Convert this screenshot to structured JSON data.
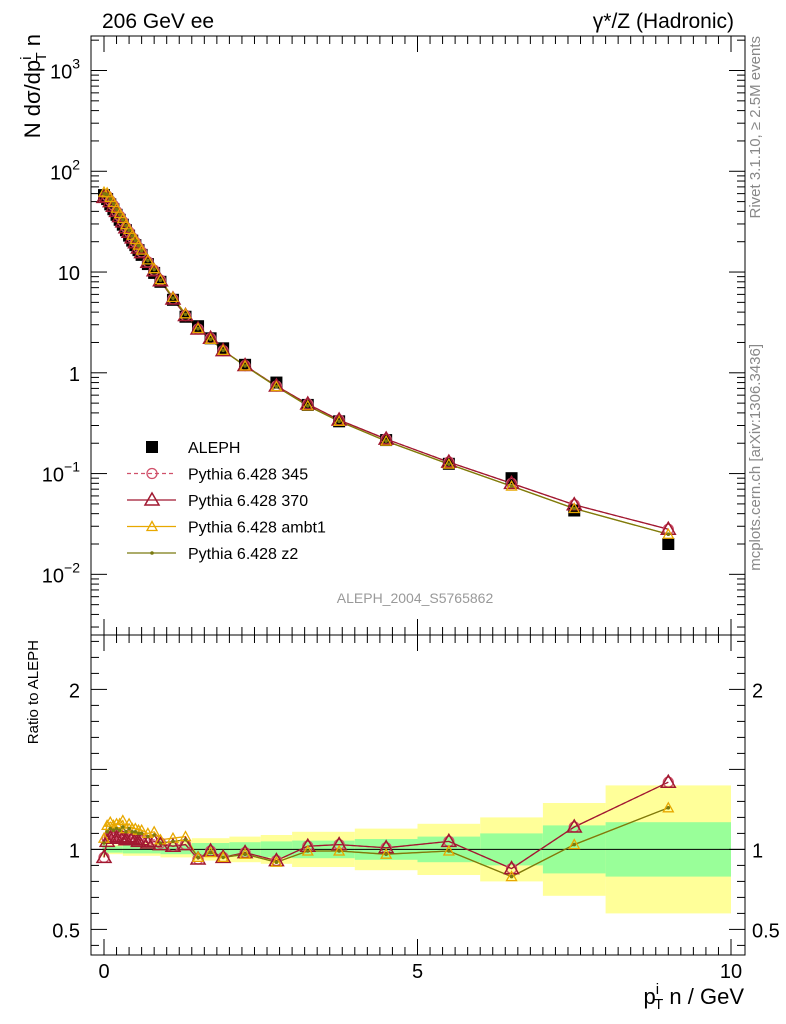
{
  "header": {
    "left": "206 GeV ee",
    "right": "γ*/Z (Hadronic)"
  },
  "side_labels": {
    "rivet": "Rivet 3.1.10, ≥ 2.5M events",
    "mcplots": "mcplots.cern.ch [arXiv:1306.3436]"
  },
  "analysis_id": "ALEPH_2004_S5765862",
  "colors": {
    "ALEPH": "#000000",
    "p345": "#d0506a",
    "p370": "#a01830",
    "ambt1": "#e8a800",
    "z2": "#7a7a10",
    "band_inner": "#99ff99",
    "band_outer": "#ffff99"
  },
  "chart_data": [
    {
      "type": "scatter",
      "panel": "main",
      "ylabel": "N dσ/dp^i_T n",
      "yscale": "log",
      "ylim": [
        0.0025,
        2200
      ],
      "xlim": [
        -0.25,
        10.1
      ],
      "y_ticks": [
        {
          "v": 0.01,
          "base": "10",
          "exp": "−2"
        },
        {
          "v": 0.1,
          "base": "10",
          "exp": "−1"
        },
        {
          "v": 1,
          "base": "1",
          "exp": ""
        },
        {
          "v": 10,
          "base": "10",
          "exp": ""
        },
        {
          "v": 100,
          "base": "10",
          "exp": "2"
        },
        {
          "v": 1000,
          "base": "10",
          "exp": "3"
        }
      ],
      "legend": [
        {
          "key": "ALEPH",
          "label": "ALEPH",
          "style": "square"
        },
        {
          "key": "p345",
          "label": "Pythia 6.428 345",
          "style": "circle-dashed"
        },
        {
          "key": "p370",
          "label": "Pythia 6.428 370",
          "style": "triangle"
        },
        {
          "key": "ambt1",
          "label": "Pythia 6.428 ambt1",
          "style": "triangle-small"
        },
        {
          "key": "z2",
          "label": "Pythia 6.428 z2",
          "style": "dot"
        }
      ],
      "x": [
        0.0,
        0.05,
        0.1,
        0.15,
        0.2,
        0.25,
        0.3,
        0.35,
        0.4,
        0.45,
        0.5,
        0.55,
        0.6,
        0.7,
        0.8,
        0.9,
        1.1,
        1.3,
        1.5,
        1.7,
        1.9,
        2.25,
        2.75,
        3.25,
        3.75,
        4.5,
        5.5,
        6.5,
        7.5,
        9.0
      ],
      "series": [
        {
          "key": "ALEPH",
          "name": "ALEPH",
          "values": [
            58,
            53,
            47,
            42,
            37,
            33,
            29.5,
            26,
            23,
            20.5,
            18.5,
            16.5,
            14.8,
            12,
            9.8,
            8.0,
            5.3,
            3.6,
            2.9,
            2.2,
            1.75,
            1.2,
            0.8,
            0.48,
            0.33,
            0.215,
            0.125,
            0.09,
            0.043,
            0.02
          ]
        },
        {
          "key": "p345",
          "name": "Pythia 6.428 345",
          "values": [
            55,
            57,
            51,
            46,
            40,
            36,
            31.7,
            27.8,
            25,
            22,
            19.8,
            17.5,
            15.8,
            12.6,
            10.4,
            8.3,
            5.4,
            3.7,
            2.72,
            2.2,
            1.66,
            1.18,
            0.74,
            0.49,
            0.34,
            0.22,
            0.13,
            0.08,
            0.049,
            0.028
          ]
        },
        {
          "key": "p370",
          "name": "Pythia 6.428 370",
          "values": [
            55,
            56,
            50,
            45,
            40,
            35.5,
            31.5,
            27.5,
            24.8,
            21.8,
            19.5,
            17.3,
            15.6,
            12.5,
            10.3,
            8.2,
            5.4,
            3.7,
            2.72,
            2.2,
            1.66,
            1.18,
            0.74,
            0.49,
            0.34,
            0.22,
            0.13,
            0.08,
            0.049,
            0.028
          ]
        },
        {
          "key": "ambt1",
          "name": "Pythia 6.428 ambt1",
          "values": [
            62,
            61,
            55,
            49,
            43,
            38,
            34,
            29.5,
            26.5,
            23.2,
            21,
            18.5,
            16.5,
            13.2,
            10.8,
            8.4,
            5.6,
            3.85,
            2.75,
            2.15,
            1.67,
            1.17,
            0.73,
            0.47,
            0.33,
            0.21,
            0.124,
            0.075,
            0.045,
            0.025
          ]
        },
        {
          "key": "z2",
          "name": "Pythia 6.428 z2",
          "values": [
            60,
            59,
            53,
            47.5,
            42,
            37,
            33,
            28.8,
            26,
            22.8,
            20.5,
            18.2,
            16.2,
            13,
            10.6,
            8.3,
            5.5,
            3.8,
            2.74,
            2.15,
            1.67,
            1.17,
            0.73,
            0.47,
            0.33,
            0.21,
            0.124,
            0.075,
            0.045,
            0.025
          ]
        }
      ]
    },
    {
      "type": "line",
      "panel": "ratio",
      "ylabel": "Ratio to ALEPH",
      "xlabel": "p^i_T n / GeV",
      "ylim": [
        0.34,
        2.34
      ],
      "xlim": [
        -0.25,
        10.1
      ],
      "y_ticks": [
        0.5,
        1,
        2
      ],
      "x_ticks": [
        0,
        5,
        10
      ],
      "bands": [
        {
          "x0": -0.025,
          "x1": 0.025,
          "inner": [
            0.97,
            1.03
          ],
          "outer": [
            0.95,
            1.05
          ]
        },
        {
          "x0": 0.025,
          "x1": 0.3,
          "inner": [
            0.98,
            1.02
          ],
          "outer": [
            0.97,
            1.03
          ]
        },
        {
          "x0": 0.3,
          "x1": 0.9,
          "inner": [
            0.975,
            1.025
          ],
          "outer": [
            0.96,
            1.04
          ]
        },
        {
          "x0": 0.9,
          "x1": 1.4,
          "inner": [
            0.97,
            1.03
          ],
          "outer": [
            0.95,
            1.05
          ]
        },
        {
          "x0": 1.4,
          "x1": 2.0,
          "inner": [
            0.96,
            1.04
          ],
          "outer": [
            0.93,
            1.07
          ]
        },
        {
          "x0": 2.0,
          "x1": 2.5,
          "inner": [
            0.955,
            1.045
          ],
          "outer": [
            0.92,
            1.08
          ]
        },
        {
          "x0": 2.5,
          "x1": 3.0,
          "inner": [
            0.95,
            1.05
          ],
          "outer": [
            0.91,
            1.09
          ]
        },
        {
          "x0": 3.0,
          "x1": 4.0,
          "inner": [
            0.945,
            1.055
          ],
          "outer": [
            0.89,
            1.11
          ]
        },
        {
          "x0": 4.0,
          "x1": 5.0,
          "inner": [
            0.935,
            1.065
          ],
          "outer": [
            0.87,
            1.13
          ]
        },
        {
          "x0": 5.0,
          "x1": 6.0,
          "inner": [
            0.92,
            1.08
          ],
          "outer": [
            0.84,
            1.16
          ]
        },
        {
          "x0": 6.0,
          "x1": 7.0,
          "inner": [
            0.9,
            1.1
          ],
          "outer": [
            0.8,
            1.2
          ]
        },
        {
          "x0": 7.0,
          "x1": 8.0,
          "inner": [
            0.85,
            1.15
          ],
          "outer": [
            0.71,
            1.29
          ]
        },
        {
          "x0": 8.0,
          "x1": 10.0,
          "inner": [
            0.83,
            1.17
          ],
          "outer": [
            0.6,
            1.4
          ]
        }
      ],
      "x": [
        0.0,
        0.05,
        0.1,
        0.15,
        0.2,
        0.25,
        0.3,
        0.35,
        0.4,
        0.45,
        0.5,
        0.55,
        0.6,
        0.7,
        0.8,
        0.9,
        1.1,
        1.3,
        1.5,
        1.7,
        1.9,
        2.25,
        2.75,
        3.25,
        3.75,
        4.5,
        5.5,
        6.5,
        7.5,
        9.0
      ],
      "series": [
        {
          "key": "p345",
          "name": "Pythia 6.428 345",
          "values": [
            0.95,
            1.07,
            1.08,
            1.09,
            1.08,
            1.09,
            1.07,
            1.07,
            1.09,
            1.08,
            1.07,
            1.06,
            1.07,
            1.05,
            1.06,
            1.04,
            1.02,
            1.03,
            0.94,
            0.99,
            0.95,
            0.98,
            0.93,
            1.02,
            1.03,
            1.01,
            1.05,
            0.88,
            1.14,
            1.42
          ]
        },
        {
          "key": "p370",
          "name": "Pythia 6.428 370",
          "values": [
            0.95,
            1.05,
            1.07,
            1.08,
            1.07,
            1.08,
            1.07,
            1.06,
            1.08,
            1.07,
            1.06,
            1.05,
            1.06,
            1.04,
            1.05,
            1.03,
            1.02,
            1.03,
            0.94,
            0.99,
            0.95,
            0.98,
            0.93,
            1.02,
            1.03,
            1.01,
            1.05,
            0.88,
            1.14,
            1.42
          ]
        },
        {
          "key": "ambt1",
          "name": "Pythia 6.428 ambt1",
          "values": [
            1.07,
            1.15,
            1.17,
            1.15,
            1.16,
            1.16,
            1.18,
            1.13,
            1.16,
            1.13,
            1.13,
            1.12,
            1.12,
            1.1,
            1.11,
            1.06,
            1.07,
            1.08,
            0.95,
            0.98,
            0.95,
            0.97,
            0.92,
            0.99,
            0.99,
            0.97,
            0.99,
            0.83,
            1.03,
            1.26
          ]
        },
        {
          "key": "z2",
          "name": "Pythia 6.428 z2",
          "values": [
            1.04,
            1.11,
            1.13,
            1.12,
            1.13,
            1.12,
            1.14,
            1.11,
            1.13,
            1.11,
            1.11,
            1.1,
            1.1,
            1.08,
            1.09,
            1.04,
            1.05,
            1.06,
            0.95,
            0.98,
            0.95,
            0.97,
            0.92,
            0.99,
            0.99,
            0.97,
            0.99,
            0.83,
            1.03,
            1.26
          ]
        }
      ]
    }
  ]
}
